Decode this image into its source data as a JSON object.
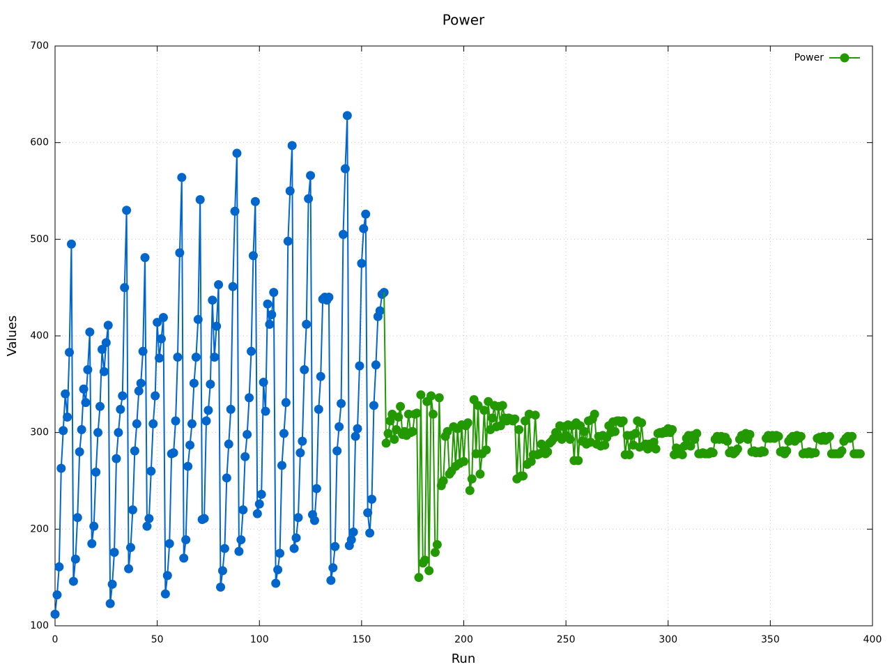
{
  "chart_data": {
    "type": "line",
    "title": "Power",
    "x_label": "Run",
    "y_label": "Values",
    "xlim": [
      0,
      400
    ],
    "xticks": [
      0,
      50,
      100,
      150,
      200,
      250,
      300,
      350,
      400
    ],
    "ylim": [
      100,
      700
    ],
    "yticks": [
      100,
      200,
      300,
      400,
      500,
      600,
      700
    ],
    "grid": true,
    "legend": "upper right",
    "series": [
      {
        "color": "#0066cc",
        "values": [
          112,
          132,
          161,
          263,
          302,
          340,
          316,
          383,
          495,
          146,
          169,
          212,
          280,
          303,
          345,
          331,
          365,
          404,
          185,
          203,
          259,
          300,
          327,
          386,
          363,
          393,
          411,
          123,
          143,
          176,
          273,
          300,
          324,
          338,
          450,
          530,
          159,
          181,
          220,
          281,
          309,
          343,
          351,
          384,
          481,
          203,
          211,
          260,
          309,
          338,
          414,
          377,
          397,
          419,
          133,
          152,
          185,
          278,
          279,
          312,
          378,
          486,
          564,
          170,
          189,
          265,
          287,
          309,
          351,
          378,
          417,
          541,
          210,
          211,
          312,
          323,
          350,
          437,
          378,
          410,
          453,
          140,
          157,
          180,
          253,
          288,
          324,
          451,
          529,
          589,
          177,
          189,
          220,
          275,
          298,
          336,
          384,
          483,
          539,
          216,
          226,
          236,
          352,
          322,
          433,
          412,
          422,
          445,
          144,
          158,
          175,
          266,
          299,
          331,
          498,
          550,
          597,
          180,
          191,
          212,
          279,
          291,
          365,
          412,
          542,
          566,
          215,
          209,
          242,
          324,
          358,
          438,
          440,
          437,
          440,
          147,
          160,
          182,
          281,
          306,
          330,
          505,
          573,
          628,
          183,
          189,
          197,
          296,
          304,
          369,
          475,
          511,
          526,
          217,
          196,
          231,
          328,
          370,
          420,
          426,
          443,
          445
        ]
      },
      {
        "name": "Power",
        "color": "#229900",
        "values": [
          289,
          299,
          312,
          319,
          293,
          303,
          316,
          327,
          298,
          301,
          297,
          319,
          300,
          301,
          319,
          320,
          150,
          339,
          165,
          168,
          332,
          157,
          338,
          319,
          176,
          184,
          336,
          245,
          250,
          296,
          301,
          257,
          260,
          306,
          265,
          304,
          268,
          308,
          270,
          307,
          310,
          240,
          252,
          334,
          278,
          328,
          257,
          278,
          323,
          282,
          332,
          303,
          315,
          328,
          306,
          327,
          307,
          328,
          315,
          312,
          315,
          314,
          312,
          314,
          252,
          303,
          255,
          255,
          312,
          267,
          319,
          270,
          277,
          318,
          277,
          278,
          288,
          286,
          278,
          280,
          289,
          291,
          294,
          300,
          297,
          307,
          293,
          306,
          297,
          308,
          293,
          307,
          271,
          310,
          271,
          307,
          291,
          301,
          288,
          312,
          290,
          314,
          319,
          288,
          296,
          286,
          297,
          287,
          295,
          307,
          300,
          311,
          301,
          312,
          312,
          310,
          312,
          277,
          297,
          277,
          297,
          287,
          299,
          312,
          285,
          310,
          286,
          288,
          283,
          288,
          285,
          290,
          283,
          299,
          300,
          299,
          301,
          300,
          304,
          300,
          303,
          277,
          284,
          278,
          283,
          277,
          286,
          294,
          297,
          286,
          297,
          293,
          299,
          278,
          278,
          279,
          278,
          278,
          278,
          280,
          279,
          293,
          296,
          293,
          296,
          293,
          295,
          291,
          279,
          281,
          278,
          280,
          283,
          293,
          297,
          295,
          299,
          293,
          298,
          280,
          281,
          279,
          280,
          279,
          281,
          280,
          294,
          297,
          294,
          297,
          294,
          297,
          296,
          280,
          281,
          278,
          281,
          291,
          294,
          296,
          291,
          297,
          294,
          296,
          278,
          279,
          278,
          280,
          278,
          279,
          279,
          294,
          295,
          292,
          296,
          292,
          294,
          296,
          278,
          278,
          278,
          278,
          278,
          281,
          291,
          294,
          296,
          294,
          296,
          278,
          278,
          278,
          278
        ]
      }
    ]
  }
}
